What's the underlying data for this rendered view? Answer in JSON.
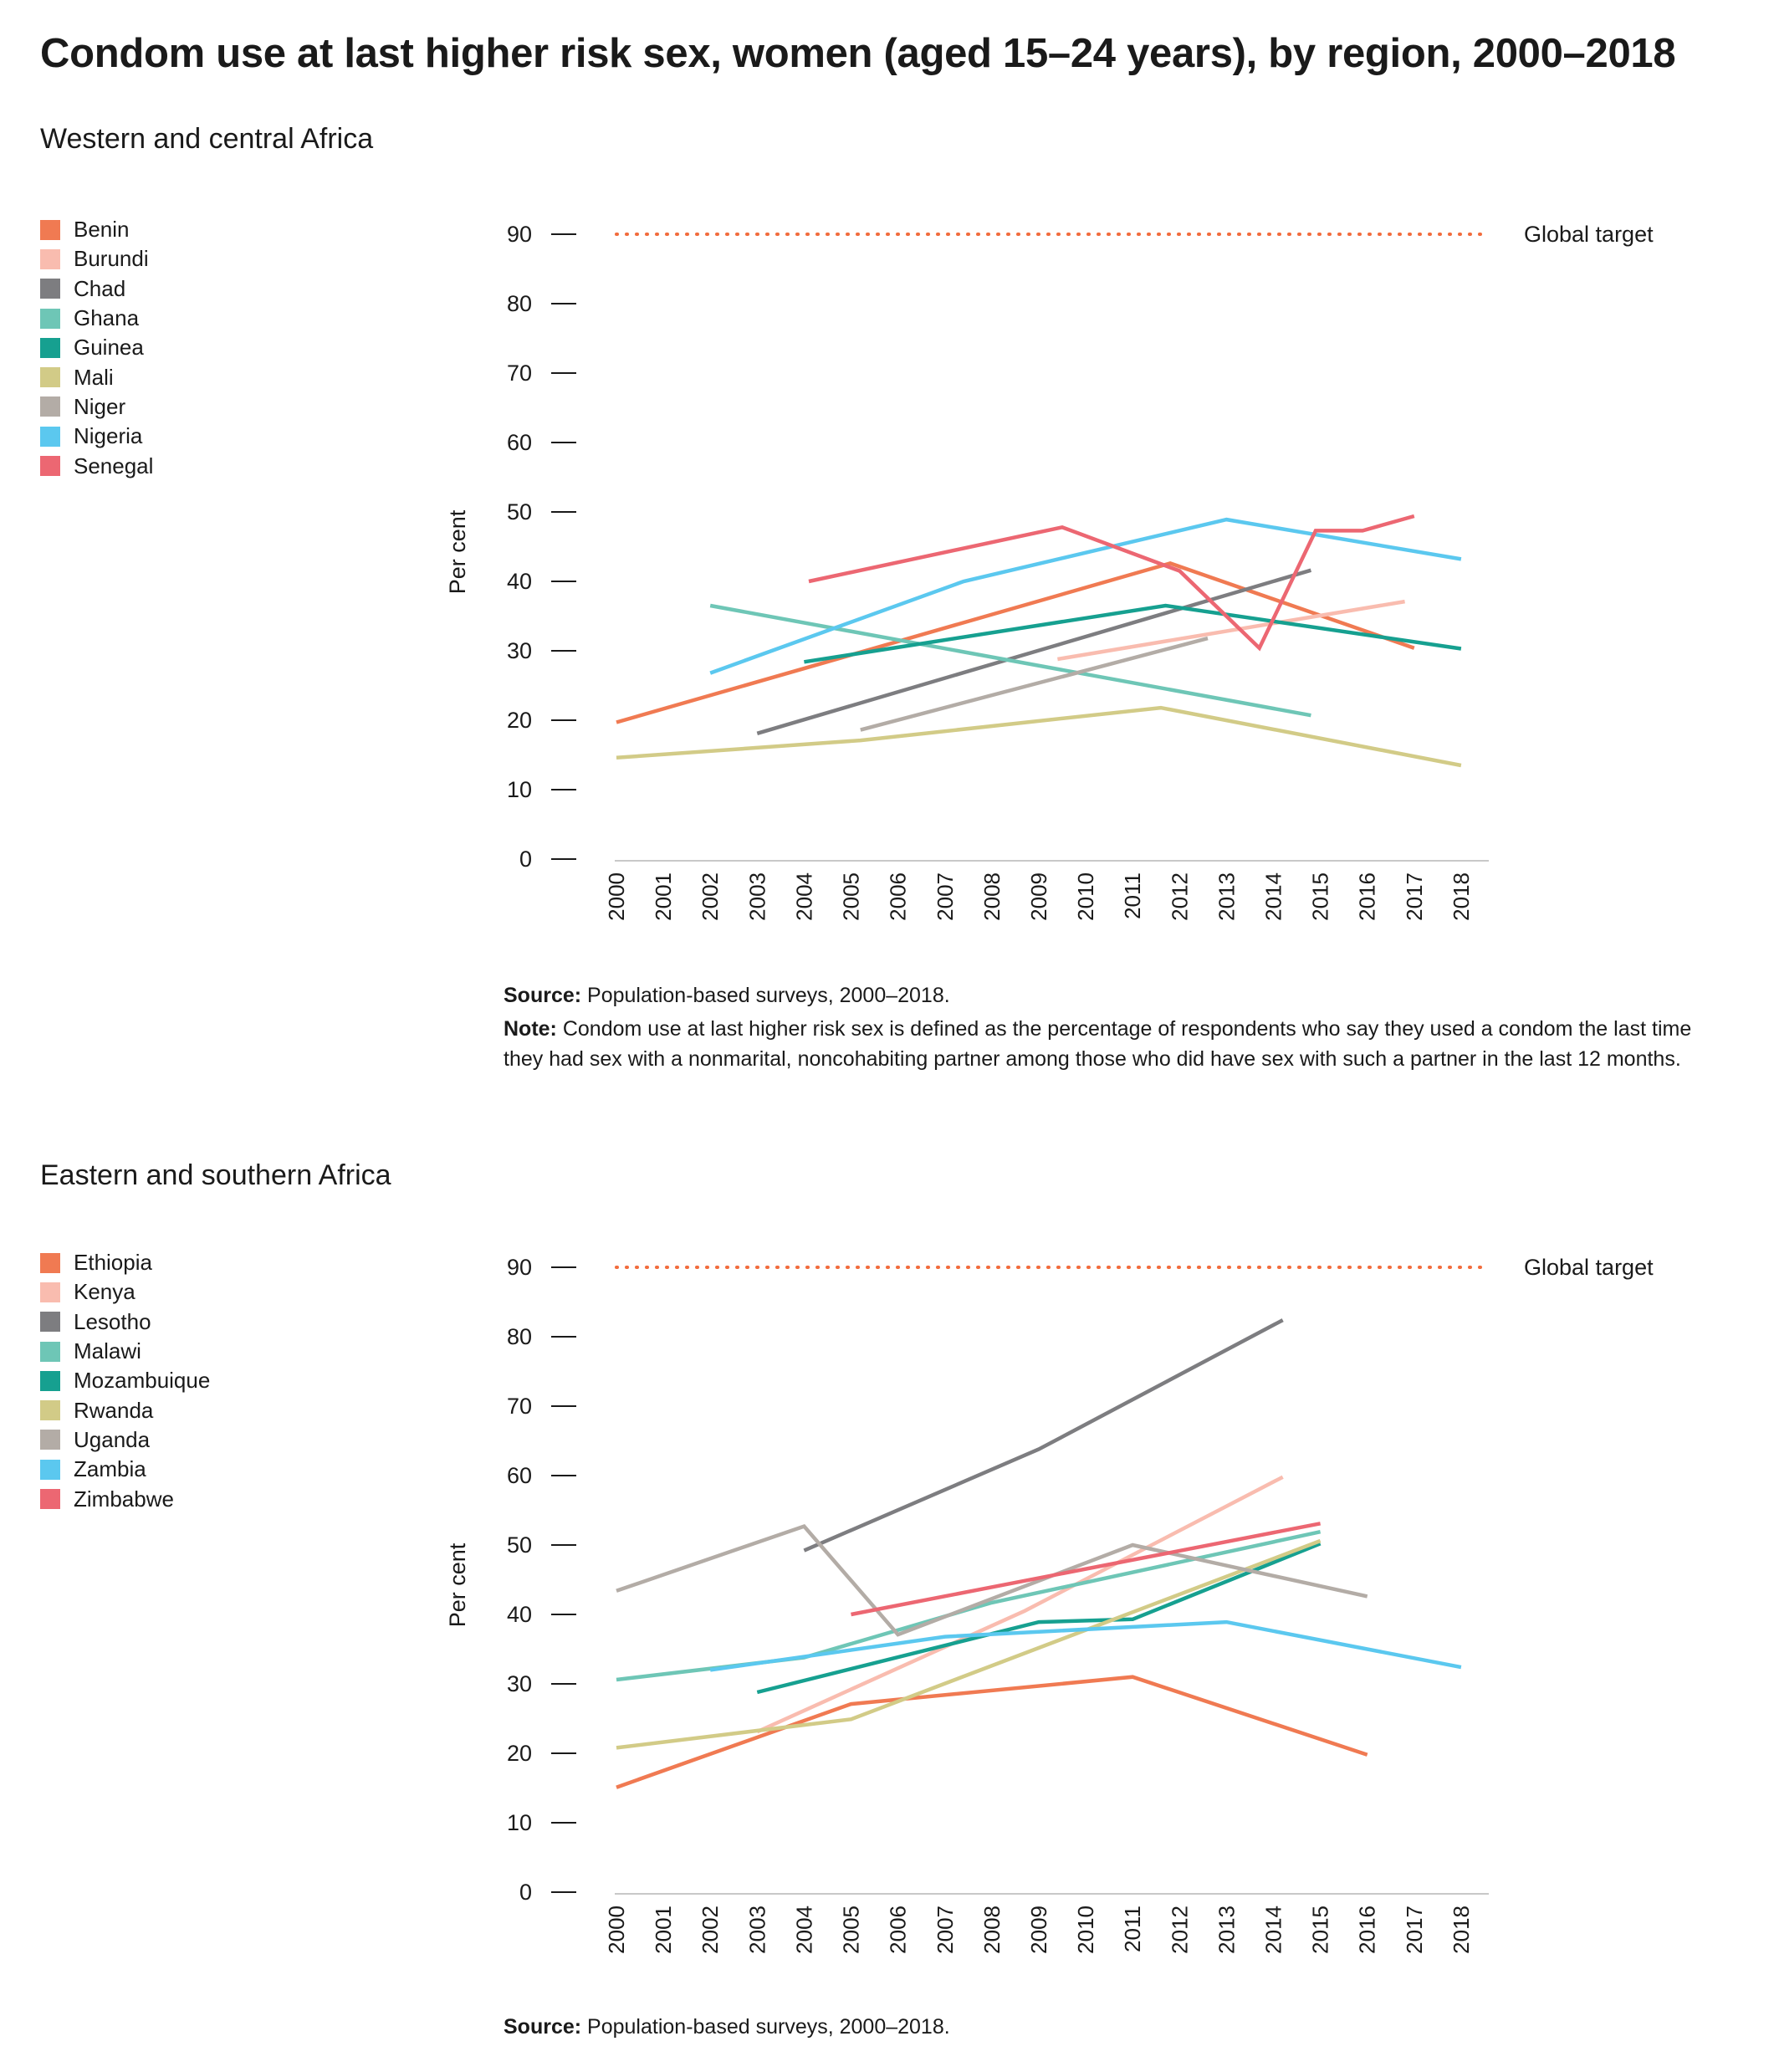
{
  "title": "Condom use at last higher risk sex, women (aged 15–24 years), by region, 2000–2018",
  "chart_data": [
    {
      "type": "line",
      "subtitle": "Western and central Africa",
      "ylabel": "Per cent",
      "ylim": [
        0,
        90
      ],
      "yticks": [
        0,
        10,
        20,
        30,
        40,
        50,
        60,
        70,
        80,
        90
      ],
      "x": [
        2000,
        2001,
        2002,
        2003,
        2004,
        2005,
        2006,
        2007,
        2008,
        2009,
        2010,
        2011,
        2012,
        2013,
        2014,
        2015,
        2016,
        2017,
        2018
      ],
      "target": {
        "label": "Global target",
        "value": 90,
        "color": "#f26c3d"
      },
      "legend_position": "left",
      "series": [
        {
          "name": "Benin",
          "color": "#f07a52",
          "points": [
            [
              2000,
              19.7
            ],
            [
              2011.8,
              42.6
            ],
            [
              2017,
              30.4
            ]
          ]
        },
        {
          "name": "Burundi",
          "color": "#f9bcaf",
          "points": [
            [
              2009.4,
              28.8
            ],
            [
              2016.8,
              37.1
            ]
          ]
        },
        {
          "name": "Chad",
          "color": "#7d7d80",
          "points": [
            [
              2003,
              18.1
            ],
            [
              2014.8,
              41.6
            ]
          ]
        },
        {
          "name": "Ghana",
          "color": "#6ec6b6",
          "points": [
            [
              2002,
              36.5
            ],
            [
              2014.8,
              20.7
            ]
          ]
        },
        {
          "name": "Guinea",
          "color": "#16a090",
          "points": [
            [
              2004,
              28.4
            ],
            [
              2011.7,
              36.5
            ],
            [
              2018,
              30.3
            ]
          ]
        },
        {
          "name": "Mali",
          "color": "#d2cb87",
          "points": [
            [
              2000,
              14.6
            ],
            [
              2005.2,
              17.1
            ],
            [
              2011.6,
              21.8
            ],
            [
              2018,
              13.5
            ]
          ]
        },
        {
          "name": "Niger",
          "color": "#b3aca6",
          "points": [
            [
              2005.2,
              18.6
            ],
            [
              2012.6,
              31.8
            ]
          ]
        },
        {
          "name": "Nigeria",
          "color": "#5bc8ef",
          "points": [
            [
              2002,
              26.8
            ],
            [
              2007.4,
              40.0
            ],
            [
              2013,
              48.9
            ],
            [
              2018,
              43.2
            ]
          ]
        },
        {
          "name": "Senegal",
          "color": "#ec6772",
          "points": [
            [
              2004.1,
              40.0
            ],
            [
              2009.5,
              47.8
            ],
            [
              2012,
              41.5
            ],
            [
              2013.7,
              30.4
            ],
            [
              2014.9,
              47.3
            ],
            [
              2015.9,
              47.3
            ],
            [
              2017,
              49.4
            ]
          ]
        }
      ]
    },
    {
      "type": "line",
      "subtitle": "Eastern and southern Africa",
      "ylabel": "Per cent",
      "ylim": [
        0,
        90
      ],
      "yticks": [
        0,
        10,
        20,
        30,
        40,
        50,
        60,
        70,
        80,
        90
      ],
      "x": [
        2000,
        2001,
        2002,
        2003,
        2004,
        2005,
        2006,
        2007,
        2008,
        2009,
        2010,
        2011,
        2012,
        2013,
        2014,
        2015,
        2016,
        2017,
        2018
      ],
      "target": {
        "label": "Global target",
        "value": 90,
        "color": "#f26c3d"
      },
      "legend_position": "left",
      "series": [
        {
          "name": "Ethiopia",
          "color": "#f07a52",
          "points": [
            [
              2000,
              15.1
            ],
            [
              2005,
              27.1
            ],
            [
              2011,
              31.0
            ],
            [
              2016,
              19.8
            ]
          ]
        },
        {
          "name": "Kenya",
          "color": "#f9bcaf",
          "points": [
            [
              2003,
              23.1
            ],
            [
              2008.7,
              40.5
            ],
            [
              2014.2,
              59.8
            ]
          ]
        },
        {
          "name": "Lesotho",
          "color": "#7d7d80",
          "points": [
            [
              2004,
              49.2
            ],
            [
              2009,
              63.8
            ],
            [
              2014.2,
              82.4
            ]
          ]
        },
        {
          "name": "Malawi",
          "color": "#6ec6b6",
          "points": [
            [
              2000,
              30.6
            ],
            [
              2004,
              33.8
            ],
            [
              2008,
              41.7
            ],
            [
              2015,
              51.9
            ]
          ]
        },
        {
          "name": "Mozambuique",
          "color": "#16a090",
          "points": [
            [
              2003,
              28.8
            ],
            [
              2009,
              38.9
            ],
            [
              2011,
              39.3
            ],
            [
              2015,
              50.2
            ]
          ]
        },
        {
          "name": "Rwanda",
          "color": "#d2cb87",
          "points": [
            [
              2000,
              20.8
            ],
            [
              2005,
              24.9
            ],
            [
              2015,
              50.6
            ]
          ]
        },
        {
          "name": "Uganda",
          "color": "#b3aca6",
          "points": [
            [
              2000,
              43.4
            ],
            [
              2004,
              52.7
            ],
            [
              2006,
              37.1
            ],
            [
              2011,
              50.0
            ],
            [
              2016,
              42.6
            ]
          ]
        },
        {
          "name": "Zambia",
          "color": "#5bc8ef",
          "points": [
            [
              2002,
              32.0
            ],
            [
              2007,
              36.8
            ],
            [
              2013,
              38.9
            ],
            [
              2018,
              32.4
            ]
          ]
        },
        {
          "name": "Zimbabwe",
          "color": "#ec6772",
          "points": [
            [
              2005,
              40.0
            ],
            [
              2015,
              53.1
            ]
          ]
        }
      ]
    }
  ],
  "panels": [
    {
      "footnote": {
        "source_label": "Source:",
        "source_text": "Population-based surveys, 2000–2018.",
        "note_label": "Note:",
        "note_text": "Condom use at last higher risk sex is defined as the percentage of respondents who say they used a condom the last time they had sex with a nonmarital, noncohabiting partner among those who did have sex with such a partner in the last 12 months."
      }
    },
    {
      "footnote": {
        "source_label": "Source:",
        "source_text": "Population-based surveys, 2000–2018."
      }
    }
  ]
}
